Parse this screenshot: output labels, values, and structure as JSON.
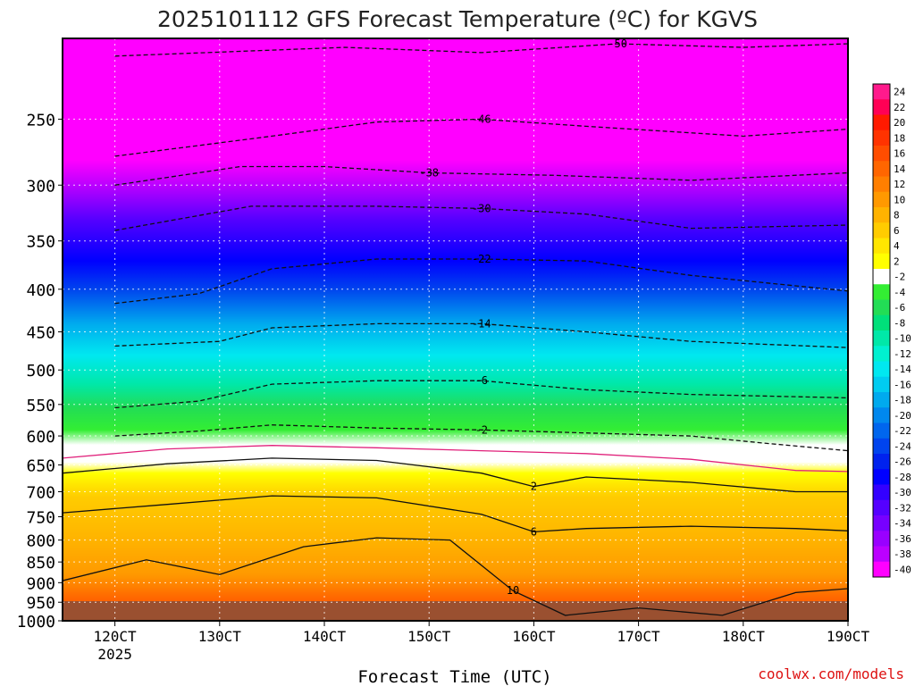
{
  "chart_data": {
    "type": "heatmap",
    "title": "2025101112 GFS Forecast Temperature (ºC) for KGVS",
    "xlabel": "Forecast Time (UTC)",
    "ylabel": "",
    "credit": "coolwx.com/models",
    "x_ticks": [
      "120CT",
      "130CT",
      "140CT",
      "150CT",
      "160CT",
      "170CT",
      "180CT",
      "190CT"
    ],
    "x_tick_year": "2025",
    "y_ticks": [
      250,
      300,
      350,
      400,
      450,
      500,
      550,
      600,
      650,
      700,
      750,
      800,
      850,
      900,
      950,
      1000
    ],
    "y_scale": "log-pressure",
    "ylim": [
      1000,
      200
    ],
    "grid": true,
    "colorbar": {
      "labels": [
        24,
        22,
        20,
        18,
        16,
        14,
        12,
        10,
        8,
        6,
        4,
        2,
        -2,
        -4,
        -6,
        -8,
        -10,
        -12,
        -14,
        -16,
        -18,
        -20,
        -22,
        -24,
        -26,
        -28,
        -30,
        -32,
        -34,
        -36,
        -38,
        -40
      ],
      "colors": [
        "#ff1a8c",
        "#ff0055",
        "#ff1a00",
        "#ff3300",
        "#ff4d00",
        "#ff6600",
        "#ff7f00",
        "#ff9900",
        "#ffb300",
        "#ffcc00",
        "#ffe600",
        "#ffff00",
        "#ffffff",
        "#33ee33",
        "#22dd55",
        "#00e07a",
        "#00e8a8",
        "#00f0d0",
        "#00e8f0",
        "#00ccf0",
        "#00aaee",
        "#0088ee",
        "#0066ee",
        "#0044ee",
        "#0022ee",
        "#0000ff",
        "#3300ff",
        "#5500ff",
        "#7700ff",
        "#9900ff",
        "#bb00ff",
        "#ff00ff"
      ]
    },
    "series": [
      {
        "name": "-50",
        "values": [
          [
            12,
            210
          ],
          [
            14.2,
            205
          ],
          [
            15.5,
            208
          ],
          [
            16.8,
            203
          ],
          [
            18,
            205
          ],
          [
            19,
            203
          ]
        ],
        "style": "dashed"
      },
      {
        "name": "-46",
        "values": [
          [
            12,
            277
          ],
          [
            13.5,
            262
          ],
          [
            14.5,
            252
          ],
          [
            15.5,
            250
          ],
          [
            16.5,
            255
          ],
          [
            18,
            262
          ],
          [
            19,
            257
          ]
        ],
        "style": "dashed"
      },
      {
        "name": "-38",
        "values": [
          [
            12,
            300
          ],
          [
            13.2,
            285
          ],
          [
            14,
            285
          ],
          [
            15,
            290
          ],
          [
            16.2,
            292
          ],
          [
            17.5,
            296
          ],
          [
            19,
            290
          ]
        ],
        "style": "dashed"
      },
      {
        "name": "-30",
        "values": [
          [
            12,
            340
          ],
          [
            13.3,
            318
          ],
          [
            14.5,
            318
          ],
          [
            15.5,
            320
          ],
          [
            16.5,
            325
          ],
          [
            17.5,
            338
          ],
          [
            19,
            335
          ]
        ],
        "style": "dashed"
      },
      {
        "name": "-22",
        "values": [
          [
            12,
            416
          ],
          [
            12.8,
            405
          ],
          [
            13.5,
            378
          ],
          [
            14.5,
            368
          ],
          [
            15.5,
            368
          ],
          [
            16.5,
            370
          ],
          [
            17.5,
            385
          ],
          [
            19,
            402
          ]
        ],
        "style": "dashed"
      },
      {
        "name": "-14",
        "values": [
          [
            12,
            468
          ],
          [
            13,
            462
          ],
          [
            13.5,
            445
          ],
          [
            14.5,
            440
          ],
          [
            15.5,
            440
          ],
          [
            16.5,
            450
          ],
          [
            17.5,
            462
          ],
          [
            19,
            470
          ]
        ],
        "style": "dashed"
      },
      {
        "name": "-6",
        "values": [
          [
            12,
            555
          ],
          [
            12.8,
            545
          ],
          [
            13.5,
            520
          ],
          [
            14.5,
            515
          ],
          [
            15.5,
            515
          ],
          [
            16.5,
            528
          ],
          [
            17.5,
            535
          ],
          [
            19,
            540
          ]
        ],
        "style": "dashed"
      },
      {
        "name": "-2",
        "values": [
          [
            12,
            600
          ],
          [
            12.8,
            592
          ],
          [
            13.5,
            582
          ],
          [
            14.5,
            587
          ],
          [
            15.5,
            590
          ],
          [
            16.5,
            595
          ],
          [
            17.5,
            600
          ],
          [
            18.2,
            612
          ],
          [
            19,
            625
          ]
        ],
        "style": "dashed"
      },
      {
        "name": "0",
        "values": [
          [
            11.5,
            638
          ],
          [
            12.5,
            622
          ],
          [
            13.5,
            616
          ],
          [
            14.5,
            620
          ],
          [
            15.5,
            625
          ],
          [
            16.5,
            630
          ],
          [
            17.5,
            640
          ],
          [
            18.5,
            660
          ],
          [
            19,
            662
          ]
        ],
        "style": "pink"
      },
      {
        "name": "2",
        "values": [
          [
            11.5,
            665
          ],
          [
            12.5,
            648
          ],
          [
            13.5,
            638
          ],
          [
            14.5,
            642
          ],
          [
            15.5,
            665
          ],
          [
            16,
            690
          ],
          [
            16.5,
            672
          ],
          [
            17.5,
            682
          ],
          [
            18.5,
            700
          ],
          [
            19,
            700
          ]
        ],
        "style": "solid"
      },
      {
        "name": "6",
        "values": [
          [
            11.5,
            742
          ],
          [
            12.5,
            725
          ],
          [
            13.5,
            708
          ],
          [
            14.5,
            712
          ],
          [
            15.5,
            745
          ],
          [
            16,
            782
          ],
          [
            16.5,
            775
          ],
          [
            17.5,
            770
          ],
          [
            18.5,
            775
          ],
          [
            19,
            780
          ]
        ],
        "style": "solid"
      },
      {
        "name": "10",
        "values": [
          [
            11.5,
            895
          ],
          [
            12.3,
            845
          ],
          [
            13,
            880
          ],
          [
            13.8,
            815
          ],
          [
            14.5,
            795
          ],
          [
            15.2,
            800
          ],
          [
            15.8,
            920
          ],
          [
            16.3,
            985
          ],
          [
            17,
            965
          ],
          [
            17.8,
            985
          ],
          [
            18.5,
            925
          ],
          [
            19,
            915
          ]
        ],
        "style": "solid"
      }
    ]
  }
}
